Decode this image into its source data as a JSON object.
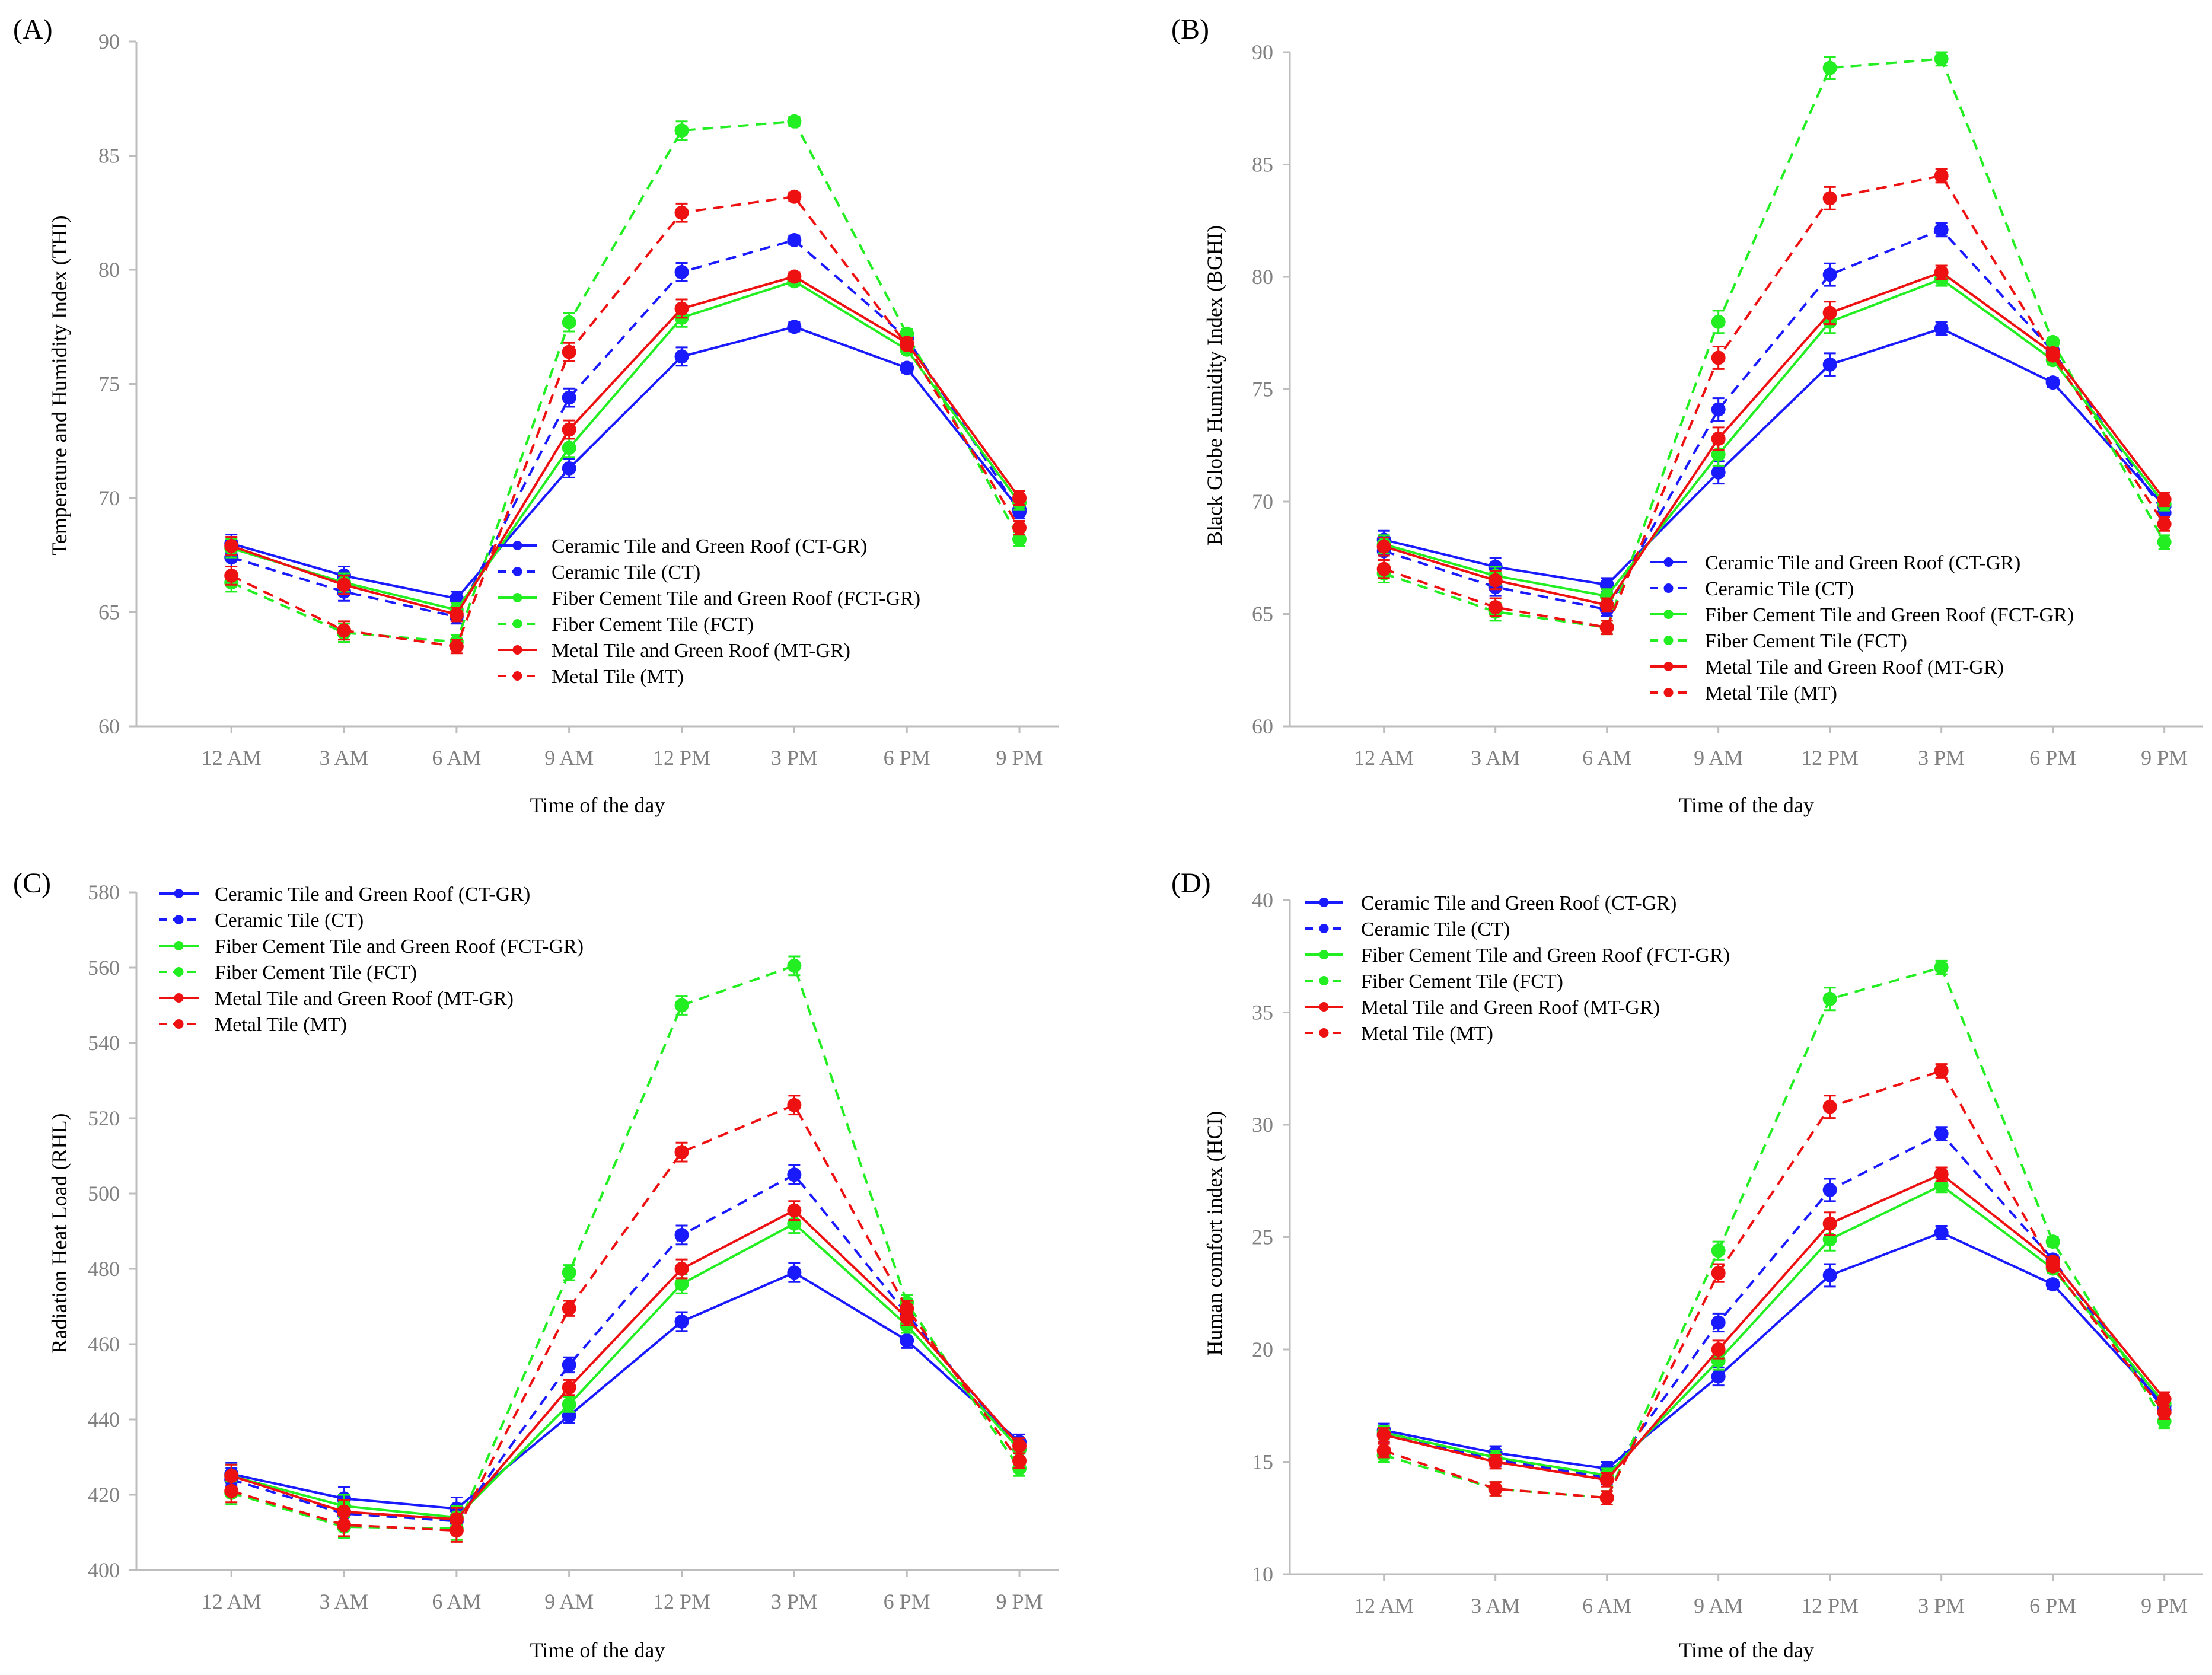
{
  "chart_data": [
    {
      "type": "line",
      "panel_label": "(A)",
      "ylabel": "Temperature and Humidity Index (THI)",
      "xlabel": "Time of  the day",
      "categories": [
        "12 AM",
        "3 AM",
        "6 AM",
        "9 AM",
        "12 PM",
        "3 PM",
        "6 PM",
        "9 PM"
      ],
      "ylim": [
        60,
        90
      ],
      "yticks": [
        "60",
        "65",
        "70",
        "75",
        "80",
        "85",
        "90"
      ],
      "legend_position": "center-right",
      "series": [
        {
          "name": "Ceramic Tile and Green Roof (CT-GR)",
          "color": "#1a1aff",
          "dashed": false,
          "values": [
            68.0,
            66.6,
            65.6,
            71.3,
            76.2,
            77.5,
            75.7,
            69.5
          ],
          "errors": [
            0.4,
            0.4,
            0.3,
            0.4,
            0.4,
            0.2,
            0.2,
            0.3
          ]
        },
        {
          "name": "Ceramic Tile (CT)",
          "color": "#1a1aff",
          "dashed": true,
          "values": [
            67.4,
            65.9,
            64.8,
            74.4,
            79.9,
            81.3,
            77.0,
            69.4
          ],
          "errors": [
            0.4,
            0.4,
            0.3,
            0.4,
            0.4,
            0.2,
            0.2,
            0.3
          ]
        },
        {
          "name": "Fiber Cement Tile and Green Roof (FCT-GR)",
          "color": "#22ee22",
          "dashed": false,
          "values": [
            67.8,
            66.3,
            65.1,
            72.2,
            77.9,
            79.5,
            76.5,
            69.8
          ],
          "errors": [
            0.4,
            0.4,
            0.3,
            0.4,
            0.4,
            0.2,
            0.2,
            0.3
          ]
        },
        {
          "name": "Fiber Cement Tile (FCT)",
          "color": "#22ee22",
          "dashed": true,
          "values": [
            66.3,
            64.1,
            63.7,
            77.7,
            86.1,
            86.5,
            77.2,
            68.2
          ],
          "errors": [
            0.4,
            0.4,
            0.3,
            0.4,
            0.4,
            0.2,
            0.2,
            0.3
          ]
        },
        {
          "name": "Metal Tile and Green Roof (MT-GR)",
          "color": "#ee1111",
          "dashed": false,
          "values": [
            67.9,
            66.2,
            64.9,
            73.0,
            78.3,
            79.7,
            76.8,
            70.0
          ],
          "errors": [
            0.4,
            0.4,
            0.3,
            0.4,
            0.4,
            0.2,
            0.2,
            0.3
          ]
        },
        {
          "name": "Metal Tile (MT)",
          "color": "#ee1111",
          "dashed": true,
          "values": [
            66.6,
            64.2,
            63.5,
            76.4,
            82.5,
            83.2,
            76.7,
            68.7
          ],
          "errors": [
            0.4,
            0.4,
            0.3,
            0.4,
            0.4,
            0.2,
            0.2,
            0.3
          ]
        }
      ]
    },
    {
      "type": "line",
      "panel_label": "(B)",
      "ylabel": "Black Globe Humidity Index (BGHI)",
      "xlabel": "Time of  the day",
      "categories": [
        "12 AM",
        "3 AM",
        "6 AM",
        "9 AM",
        "12 PM",
        "3 PM",
        "6 PM",
        "9 PM"
      ],
      "ylim": [
        60,
        90
      ],
      "yticks": [
        "60",
        "65",
        "70",
        "75",
        "80",
        "85",
        "90"
      ],
      "legend_position": "center-right",
      "series": [
        {
          "name": "Ceramic Tile and Green Roof (CT-GR)",
          "color": "#1a1aff",
          "dashed": false,
          "values": [
            68.3,
            67.1,
            66.3,
            71.3,
            76.1,
            77.7,
            75.3,
            69.8
          ],
          "errors": [
            0.4,
            0.4,
            0.3,
            0.5,
            0.5,
            0.3,
            0.2,
            0.3
          ]
        },
        {
          "name": "Ceramic Tile (CT)",
          "color": "#1a1aff",
          "dashed": true,
          "values": [
            67.8,
            66.2,
            65.2,
            74.1,
            80.1,
            82.1,
            76.7,
            69.5
          ],
          "errors": [
            0.4,
            0.4,
            0.3,
            0.5,
            0.5,
            0.3,
            0.2,
            0.3
          ]
        },
        {
          "name": "Fiber Cement Tile and Green Roof (FCT-GR)",
          "color": "#22ee22",
          "dashed": false,
          "values": [
            68.1,
            66.7,
            65.8,
            72.1,
            78.0,
            79.9,
            76.3,
            69.9
          ],
          "errors": [
            0.4,
            0.4,
            0.3,
            0.5,
            0.5,
            0.3,
            0.2,
            0.3
          ]
        },
        {
          "name": "Fiber Cement Tile (FCT)",
          "color": "#22ee22",
          "dashed": true,
          "values": [
            66.8,
            65.1,
            64.4,
            78.0,
            89.3,
            89.7,
            77.1,
            68.2
          ],
          "errors": [
            0.4,
            0.4,
            0.3,
            0.5,
            0.5,
            0.3,
            0.2,
            0.3
          ]
        },
        {
          "name": "Metal Tile and Green Roof (MT-GR)",
          "color": "#ee1111",
          "dashed": false,
          "values": [
            68.0,
            66.5,
            65.4,
            72.8,
            78.4,
            80.2,
            76.6,
            70.1
          ],
          "errors": [
            0.4,
            0.4,
            0.3,
            0.5,
            0.5,
            0.3,
            0.2,
            0.3
          ]
        },
        {
          "name": "Metal Tile (MT)",
          "color": "#ee1111",
          "dashed": true,
          "values": [
            67.0,
            65.3,
            64.4,
            76.4,
            83.5,
            84.5,
            76.5,
            69.0
          ],
          "errors": [
            0.4,
            0.4,
            0.3,
            0.5,
            0.5,
            0.3,
            0.2,
            0.3
          ]
        }
      ]
    },
    {
      "type": "line",
      "panel_label": "(C)",
      "ylabel": "Radiation Heat Load (RHL)",
      "xlabel": "Time of  the day",
      "categories": [
        "12 AM",
        "3 AM",
        "6 AM",
        "9 AM",
        "12 PM",
        "3 PM",
        "6 PM",
        "9 PM"
      ],
      "ylim": [
        400,
        580
      ],
      "yticks": [
        "400",
        "420",
        "440",
        "460",
        "480",
        "500",
        "520",
        "540",
        "560",
        "580"
      ],
      "legend_position": "top-left",
      "series": [
        {
          "name": "Ceramic Tile and Green Roof (CT-GR)",
          "color": "#1a1aff",
          "dashed": false,
          "values": [
            425.5,
            419.0,
            416.3,
            441.0,
            466.0,
            479.0,
            461.0,
            434.0
          ],
          "errors": [
            3,
            3,
            3,
            2,
            2.5,
            2.5,
            2,
            2
          ]
        },
        {
          "name": "Ceramic Tile (CT)",
          "color": "#1a1aff",
          "dashed": true,
          "values": [
            424.0,
            415.0,
            413.0,
            454.5,
            489.0,
            505.0,
            468.0,
            432.0
          ],
          "errors": [
            3,
            3,
            3,
            2,
            2.5,
            2.5,
            2,
            2
          ]
        },
        {
          "name": "Fiber Cement Tile and Green Roof (FCT-GR)",
          "color": "#22ee22",
          "dashed": false,
          "values": [
            425.0,
            417.0,
            414.0,
            444.0,
            476.0,
            492.0,
            465.0,
            432.0
          ],
          "errors": [
            3,
            3,
            3,
            2,
            2.5,
            2.5,
            2,
            2
          ]
        },
        {
          "name": "Fiber Cement Tile (FCT)",
          "color": "#22ee22",
          "dashed": true,
          "values": [
            420.5,
            411.5,
            411.0,
            479.0,
            550.0,
            560.5,
            471.0,
            427.0
          ],
          "errors": [
            3,
            3,
            3,
            2,
            2.5,
            2.5,
            2,
            2
          ]
        },
        {
          "name": "Metal Tile and Green Roof (MT-GR)",
          "color": "#ee1111",
          "dashed": false,
          "values": [
            425.0,
            415.5,
            413.5,
            448.5,
            480.0,
            495.5,
            467.0,
            433.0
          ],
          "errors": [
            3,
            3,
            3,
            2,
            2.5,
            2.5,
            2,
            2
          ]
        },
        {
          "name": "Metal Tile (MT)",
          "color": "#ee1111",
          "dashed": true,
          "values": [
            421.0,
            412.0,
            410.5,
            469.5,
            511.0,
            523.5,
            469.5,
            429.0
          ],
          "errors": [
            3,
            3,
            3,
            2,
            2.5,
            2.5,
            2,
            2
          ]
        }
      ]
    },
    {
      "type": "line",
      "panel_label": "(D)",
      "ylabel": "Human comfort index (HCI)",
      "xlabel": "Time of  the day",
      "categories": [
        "12 AM",
        "3 AM",
        "6 AM",
        "9 AM",
        "12 PM",
        "3 PM",
        "6 PM",
        "9 PM"
      ],
      "ylim": [
        10,
        40
      ],
      "yticks": [
        "10",
        "15",
        "20",
        "25",
        "30",
        "35",
        "40"
      ],
      "legend_position": "top-left",
      "series": [
        {
          "name": "Ceramic Tile and Green Roof (CT-GR)",
          "color": "#1a1aff",
          "dashed": false,
          "values": [
            16.4,
            15.4,
            14.7,
            18.8,
            23.3,
            25.2,
            22.9,
            17.5
          ],
          "errors": [
            0.3,
            0.3,
            0.3,
            0.4,
            0.5,
            0.3,
            0.2,
            0.3
          ]
        },
        {
          "name": "Ceramic Tile (CT)",
          "color": "#1a1aff",
          "dashed": true,
          "values": [
            16.2,
            15.1,
            14.3,
            21.2,
            27.1,
            29.6,
            24.0,
            17.3
          ],
          "errors": [
            0.3,
            0.3,
            0.3,
            0.4,
            0.5,
            0.3,
            0.2,
            0.3
          ]
        },
        {
          "name": "Fiber Cement Tile and Green Roof (FCT-GR)",
          "color": "#22ee22",
          "dashed": false,
          "values": [
            16.3,
            15.2,
            14.4,
            19.5,
            24.9,
            27.3,
            23.6,
            17.6
          ],
          "errors": [
            0.3,
            0.3,
            0.3,
            0.4,
            0.5,
            0.3,
            0.2,
            0.3
          ]
        },
        {
          "name": "Fiber Cement Tile (FCT)",
          "color": "#22ee22",
          "dashed": true,
          "values": [
            15.3,
            13.8,
            13.4,
            24.4,
            35.6,
            37.0,
            24.8,
            16.8
          ],
          "errors": [
            0.3,
            0.3,
            0.3,
            0.4,
            0.5,
            0.3,
            0.2,
            0.3
          ]
        },
        {
          "name": "Metal Tile and Green Roof (MT-GR)",
          "color": "#ee1111",
          "dashed": false,
          "values": [
            16.2,
            15.0,
            14.2,
            20.0,
            25.6,
            27.8,
            23.9,
            17.8
          ],
          "errors": [
            0.3,
            0.3,
            0.3,
            0.4,
            0.5,
            0.3,
            0.2,
            0.3
          ]
        },
        {
          "name": "Metal Tile (MT)",
          "color": "#ee1111",
          "dashed": true,
          "values": [
            15.5,
            13.8,
            13.4,
            23.4,
            30.8,
            32.4,
            23.7,
            17.2
          ],
          "errors": [
            0.3,
            0.3,
            0.3,
            0.4,
            0.5,
            0.3,
            0.2,
            0.3
          ]
        }
      ]
    }
  ]
}
